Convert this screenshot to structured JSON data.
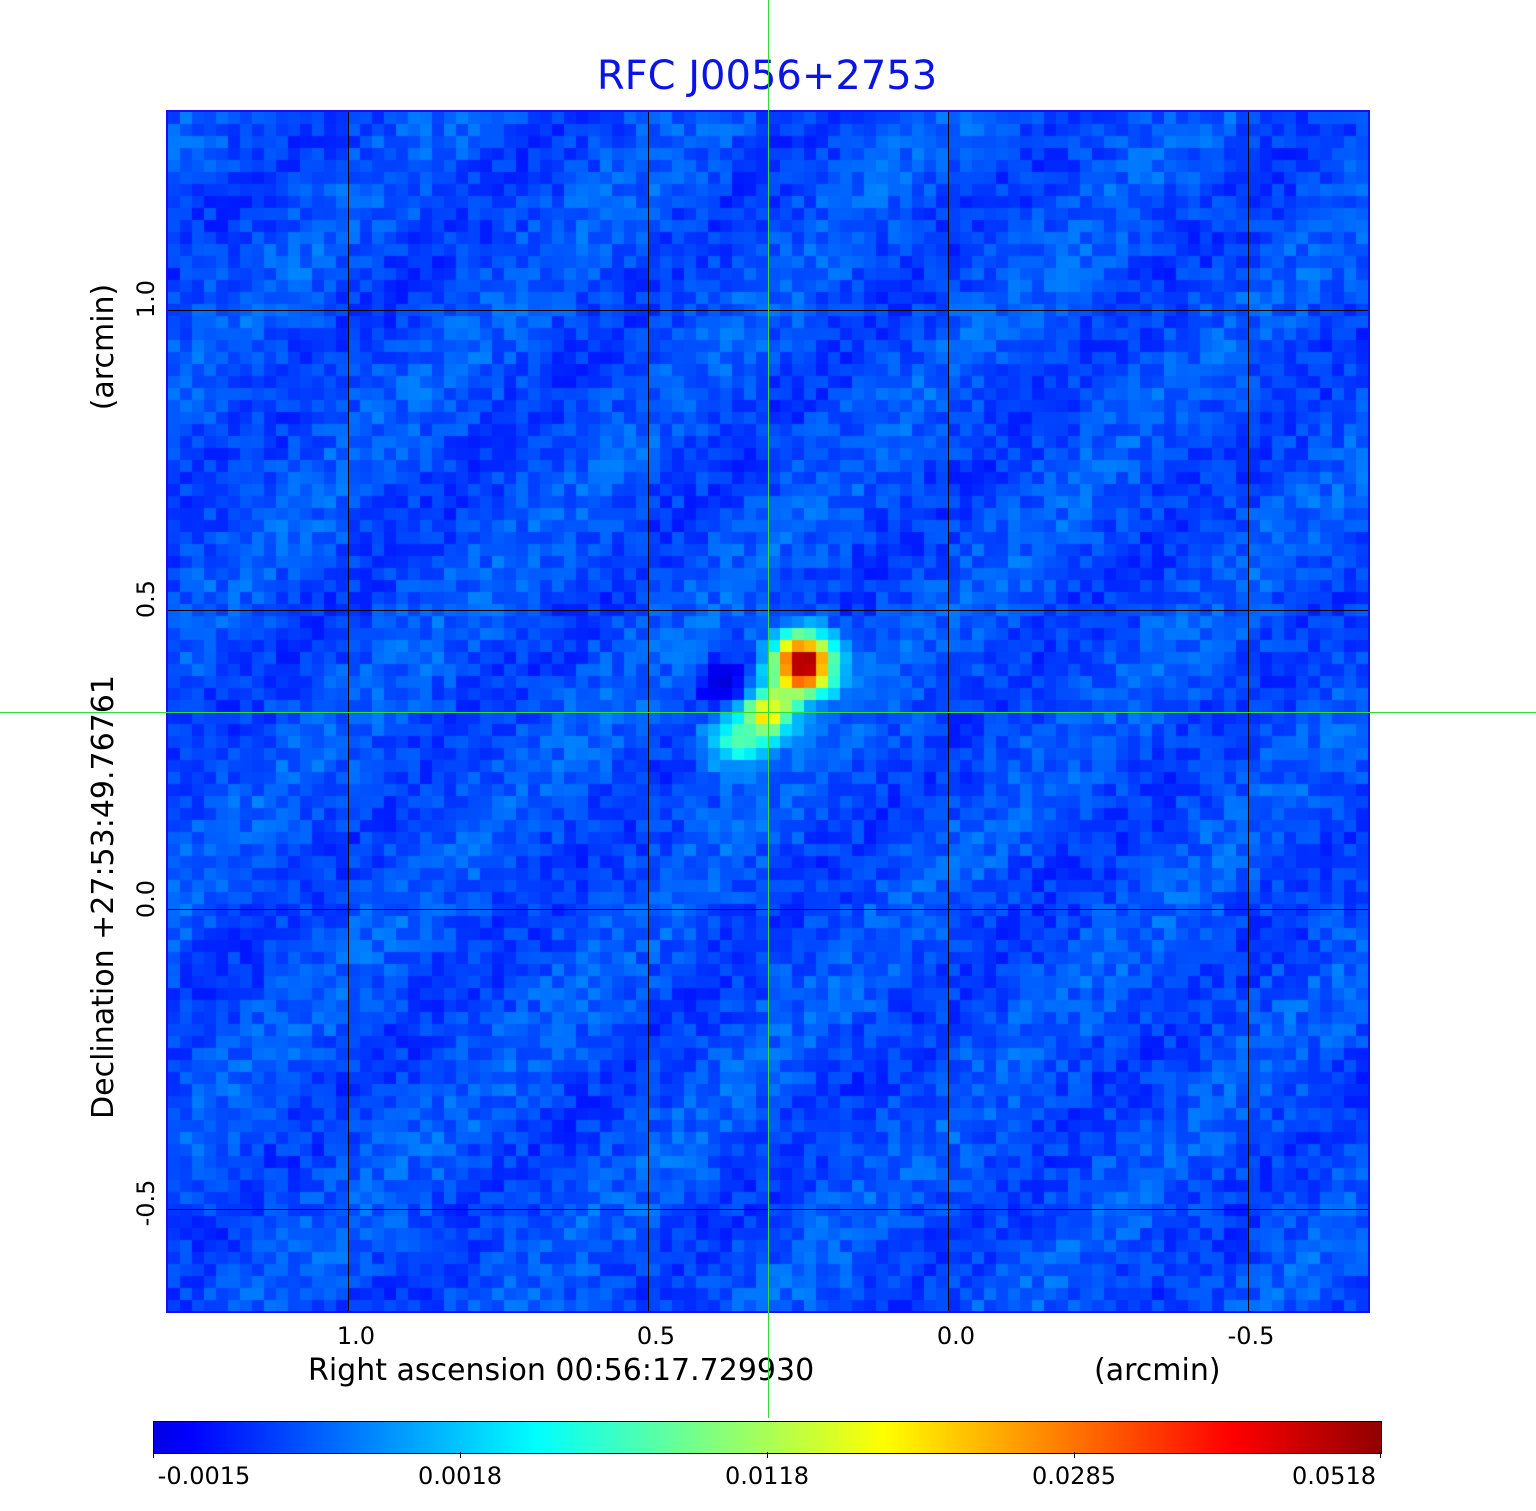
{
  "chart_data": {
    "type": "heatmap",
    "title": "RFC J0056+2753",
    "xlabel": "Right ascension  00:56:17.729930",
    "xunit": "(arcmin)",
    "ylabel": "Declination  +27:53:49.76761",
    "yunit": "(arcmin)",
    "xlim": [
      1.3,
      -0.7
    ],
    "ylim": [
      -0.67,
      1.33
    ],
    "xticks": [
      "1.0",
      "0.5",
      "0.0",
      "-0.5"
    ],
    "xtick_values": [
      1.0,
      0.5,
      0.0,
      -0.5
    ],
    "yticks": [
      "1.0",
      "0.5",
      "0.0",
      "-0.5"
    ],
    "ytick_values": [
      1.0,
      0.5,
      0.0,
      -0.5
    ],
    "grid": true,
    "colormap": "jet",
    "colorbar": {
      "ticks": [
        "-0.0015",
        "0.0018",
        "0.0118",
        "0.0285",
        "0.0518"
      ],
      "range": [
        -0.0015,
        0.0518
      ]
    },
    "crosshair": {
      "x": 0.3,
      "y": 0.33,
      "color": "#33dd33"
    },
    "background_level": 0.2,
    "components": [
      {
        "name": "core",
        "x": 0.24,
        "y": 0.41,
        "level": 1.0,
        "sigma": 0.035
      },
      {
        "name": "jet-knot-1",
        "x": 0.3,
        "y": 0.33,
        "level": 0.62,
        "sigma": 0.03
      },
      {
        "name": "jet-knot-2",
        "x": 0.355,
        "y": 0.283,
        "level": 0.42,
        "sigma": 0.035
      },
      {
        "name": "negative-spot",
        "x": 0.37,
        "y": 0.37,
        "level": -0.12,
        "sigma": 0.03
      }
    ]
  }
}
